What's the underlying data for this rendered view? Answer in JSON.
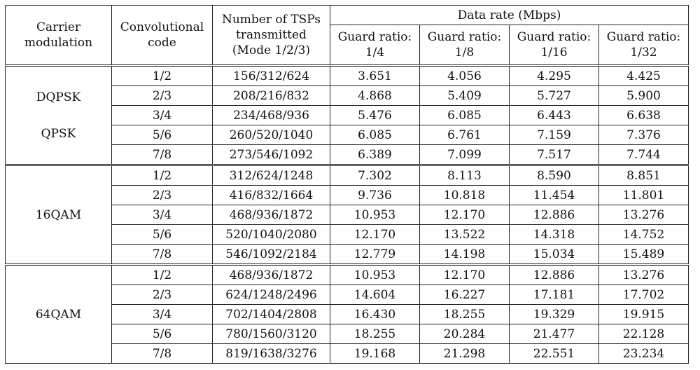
{
  "headers": {
    "carrier_modulation": [
      "Carrier",
      "modulation"
    ],
    "convolutional_code": [
      "Convolutional",
      "code"
    ],
    "num_tsps": [
      "Number of TSPs",
      "transmitted",
      "(Mode 1/2/3)"
    ],
    "data_rate": "Data rate (Mbps)",
    "guard_ratios": [
      [
        "Guard ratio:",
        "1/4"
      ],
      [
        "Guard ratio:",
        "1/8"
      ],
      [
        "Guard ratio:",
        "1/16"
      ],
      [
        "Guard ratio:",
        "1/32"
      ]
    ]
  },
  "groups": [
    {
      "modulation": [
        "DQPSK",
        "QPSK"
      ],
      "rows": [
        {
          "code": "1/2",
          "tsps": "156/312/624",
          "rates": [
            "3.651",
            "4.056",
            "4.295",
            "4.425"
          ]
        },
        {
          "code": "2/3",
          "tsps": "208/216/832",
          "rates": [
            "4.868",
            "5.409",
            "5.727",
            "5.900"
          ]
        },
        {
          "code": "3/4",
          "tsps": "234/468/936",
          "rates": [
            "5.476",
            "6.085",
            "6.443",
            "6.638"
          ]
        },
        {
          "code": "5/6",
          "tsps": "260/520/1040",
          "rates": [
            "6.085",
            "6.761",
            "7.159",
            "7.376"
          ]
        },
        {
          "code": "7/8",
          "tsps": "273/546/1092",
          "rates": [
            "6.389",
            "7.099",
            "7.517",
            "7.744"
          ]
        }
      ]
    },
    {
      "modulation": [
        "16QAM"
      ],
      "rows": [
        {
          "code": "1/2",
          "tsps": "312/624/1248",
          "rates": [
            "7.302",
            "8.113",
            "8.590",
            "8.851"
          ]
        },
        {
          "code": "2/3",
          "tsps": "416/832/1664",
          "rates": [
            "9.736",
            "10.818",
            "11.454",
            "11.801"
          ]
        },
        {
          "code": "3/4",
          "tsps": "468/936/1872",
          "rates": [
            "10.953",
            "12.170",
            "12.886",
            "13.276"
          ]
        },
        {
          "code": "5/6",
          "tsps": "520/1040/2080",
          "rates": [
            "12.170",
            "13.522",
            "14.318",
            "14.752"
          ]
        },
        {
          "code": "7/8",
          "tsps": "546/1092/2184",
          "rates": [
            "12.779",
            "14.198",
            "15.034",
            "15.489"
          ]
        }
      ]
    },
    {
      "modulation": [
        "64QAM"
      ],
      "rows": [
        {
          "code": "1/2",
          "tsps": "468/936/1872",
          "rates": [
            "10.953",
            "12.170",
            "12.886",
            "13.276"
          ]
        },
        {
          "code": "2/3",
          "tsps": "624/1248/2496",
          "rates": [
            "14.604",
            "16.227",
            "17.181",
            "17.702"
          ]
        },
        {
          "code": "3/4",
          "tsps": "702/1404/2808",
          "rates": [
            "16.430",
            "18.255",
            "19.329",
            "19.915"
          ]
        },
        {
          "code": "5/6",
          "tsps": "780/1560/3120",
          "rates": [
            "18.255",
            "20.284",
            "21.477",
            "22.128"
          ]
        },
        {
          "code": "7/8",
          "tsps": "819/1638/3276",
          "rates": [
            "19.168",
            "21.298",
            "22.551",
            "23.234"
          ]
        }
      ]
    }
  ]
}
